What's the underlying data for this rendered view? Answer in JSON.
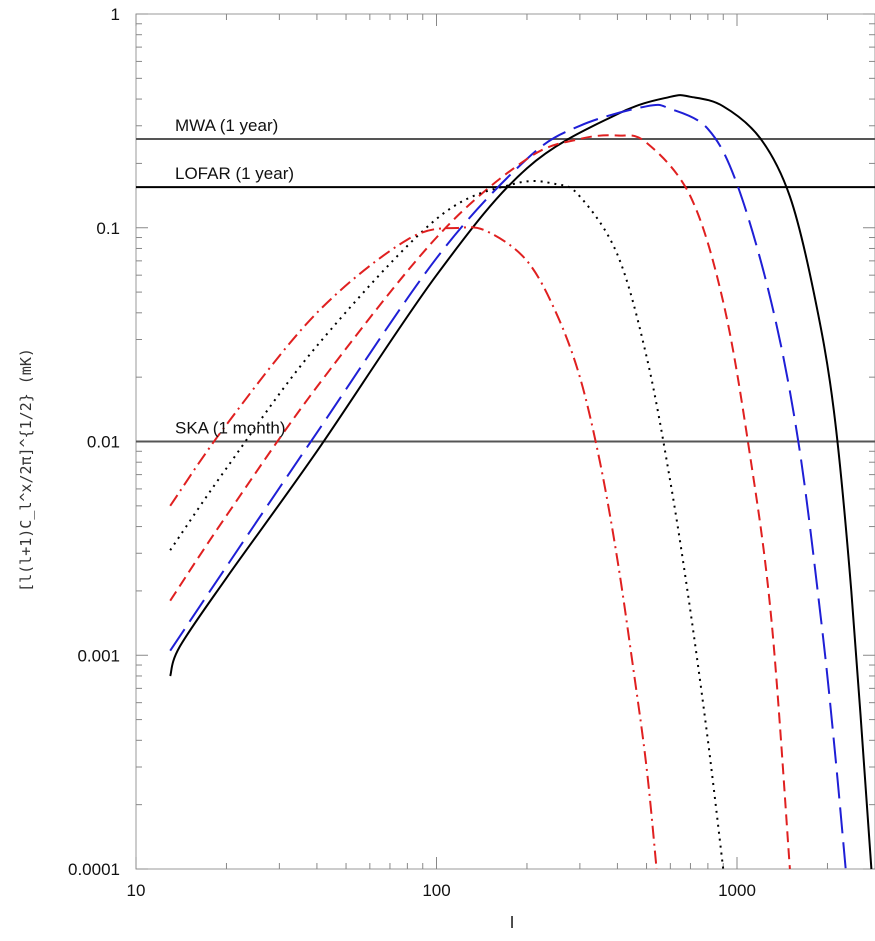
{
  "chart_data": {
    "type": "line",
    "title": "",
    "xlabel": "l",
    "ylabel": "[l(l+1)C_l^x/2π]^{1/2} (mK)",
    "xscale": "log",
    "yscale": "log",
    "xlim": [
      10,
      2800
    ],
    "ylim": [
      0.0001,
      1
    ],
    "x_tick_labels": [
      "10",
      "100",
      "1000"
    ],
    "y_tick_labels": [
      "0.0001",
      "0.001",
      "0.01",
      "0.1",
      "1"
    ],
    "grid": false,
    "legend": "none",
    "series": [
      {
        "color": "#000000",
        "dash": "solid",
        "x": [
          13,
          14,
          20,
          40,
          100,
          200,
          400,
          600,
          700,
          900,
          1200,
          1500,
          1800,
          2100,
          2400,
          2800
        ],
        "y": [
          0.0008,
          0.0011,
          0.0023,
          0.009,
          0.06,
          0.19,
          0.34,
          0.41,
          0.41,
          0.37,
          0.26,
          0.14,
          0.05,
          0.014,
          0.002,
          0.0001
        ]
      },
      {
        "color": "#1f1fd6",
        "dash": "long",
        "x": [
          13,
          20,
          40,
          100,
          200,
          300,
          500,
          600,
          800,
          1000,
          1300,
          1600,
          1900,
          2100,
          2300
        ],
        "y": [
          0.00105,
          0.0026,
          0.011,
          0.072,
          0.21,
          0.3,
          0.37,
          0.36,
          0.29,
          0.16,
          0.045,
          0.01,
          0.0015,
          0.0004,
          0.0001
        ]
      },
      {
        "color": "#e02020",
        "dash": "short",
        "x": [
          13,
          20,
          40,
          100,
          200,
          300,
          400,
          500,
          700,
          900,
          1100,
          1300,
          1500
        ],
        "y": [
          0.0018,
          0.0045,
          0.018,
          0.09,
          0.21,
          0.26,
          0.27,
          0.25,
          0.14,
          0.045,
          0.009,
          0.0015,
          0.0001
        ]
      },
      {
        "color": "#000000",
        "dash": "dotted",
        "x": [
          13,
          20,
          40,
          100,
          180,
          250,
          300,
          400,
          500,
          600,
          700,
          800,
          900
        ],
        "y": [
          0.0031,
          0.0075,
          0.028,
          0.11,
          0.16,
          0.16,
          0.14,
          0.075,
          0.025,
          0.0065,
          0.0016,
          0.0004,
          0.0001
        ]
      },
      {
        "color": "#e02020",
        "dash": "dashdot",
        "x": [
          13,
          20,
          40,
          80,
          120,
          150,
          200,
          250,
          300,
          350,
          400,
          450,
          500,
          540
        ],
        "y": [
          0.005,
          0.012,
          0.04,
          0.088,
          0.1,
          0.095,
          0.07,
          0.04,
          0.02,
          0.008,
          0.0028,
          0.0009,
          0.0003,
          0.0001
        ]
      }
    ],
    "reference_lines": [
      {
        "label": "MWA (1 year)",
        "y": 0.26,
        "color": "#555555"
      },
      {
        "label": "LOFAR (1 year)",
        "y": 0.155,
        "color": "#000000"
      },
      {
        "label": "SKA (1 month)",
        "y": 0.01,
        "color": "#555555"
      }
    ]
  }
}
